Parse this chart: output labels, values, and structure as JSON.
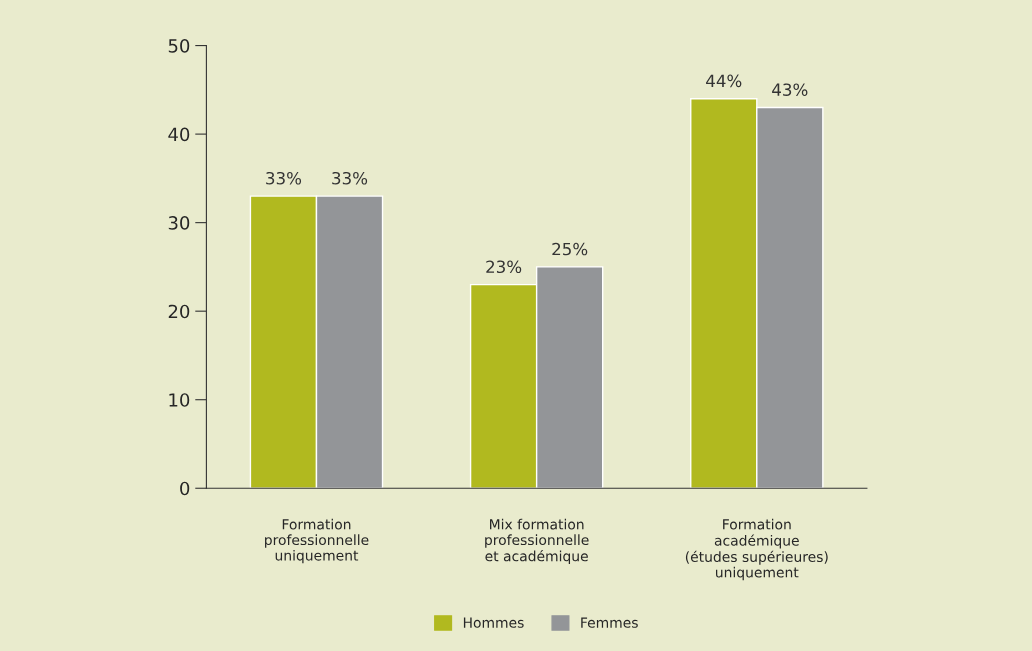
{
  "chart_data": {
    "type": "bar",
    "categories": [
      "Formation\nprofessionnelle\nuniquement",
      "Mix formation\nprofessionnelle\net académique",
      "Formation\nacadémique\n(études supérieures)\nuniquement"
    ],
    "series": [
      {
        "name": "Hommes",
        "color": "#b1b91f",
        "values": [
          33,
          23,
          44
        ],
        "value_labels": [
          "33%",
          "23%",
          "44%"
        ]
      },
      {
        "name": "Femmes",
        "color": "#939598",
        "values": [
          33,
          25,
          43
        ],
        "value_labels": [
          "33%",
          "25%",
          "43%"
        ]
      }
    ],
    "ylim": [
      0,
      50
    ],
    "yticks": [
      0,
      10,
      20,
      30,
      40,
      50
    ],
    "grid": false,
    "legend": "bottom"
  }
}
